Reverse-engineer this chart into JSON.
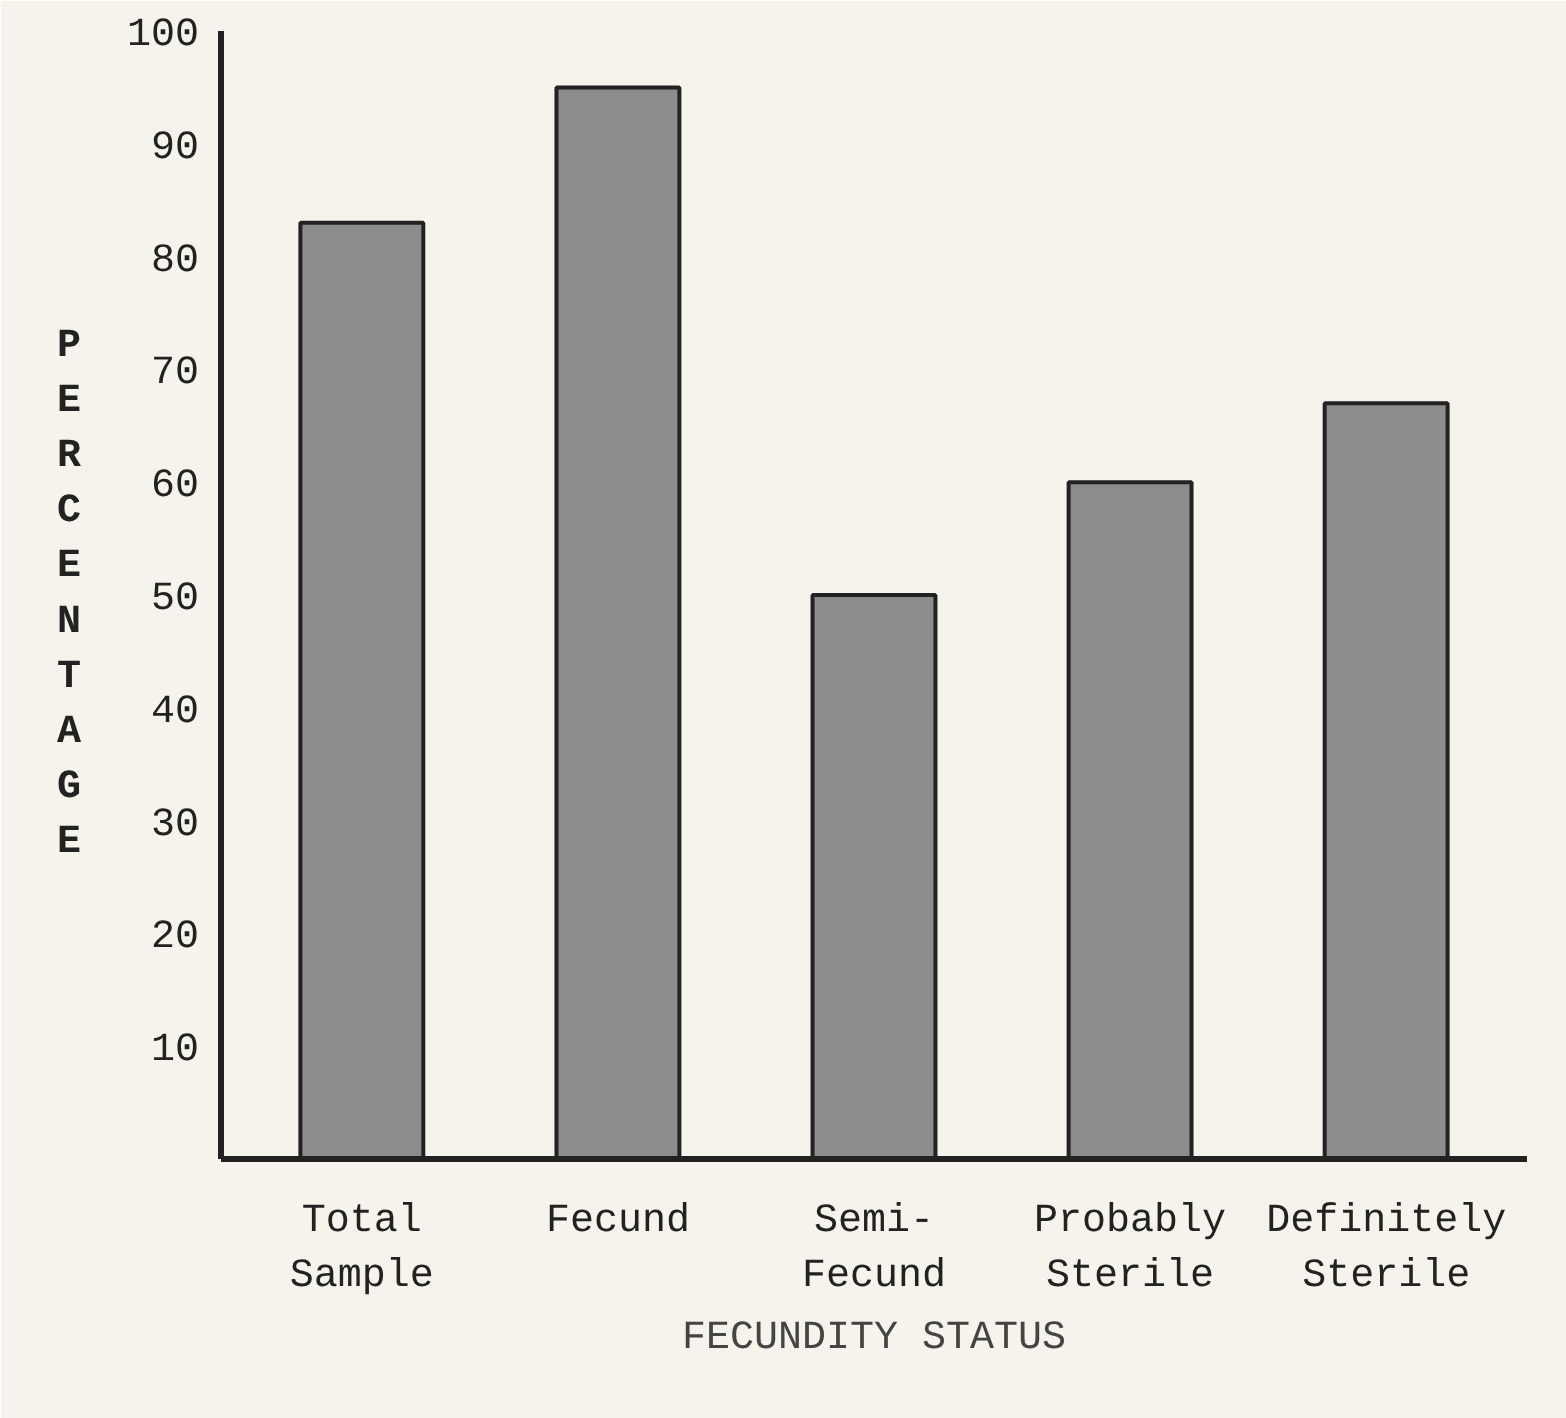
{
  "chart_data": {
    "type": "bar",
    "xlabel": "FECUNDITY STATUS",
    "ylabel": "PERCENTAGE",
    "categories": [
      "Total\nSample",
      "Fecund",
      "Semi-\nFecund",
      "Probably\nSterile",
      "Definitely\nSterile"
    ],
    "values": [
      83,
      95,
      50,
      60,
      67
    ],
    "color": "#8c8c8c",
    "ylim": [
      0,
      100
    ],
    "yticks": [
      10,
      20,
      30,
      40,
      50,
      60,
      70,
      80,
      90,
      100
    ],
    "grid": false
  }
}
